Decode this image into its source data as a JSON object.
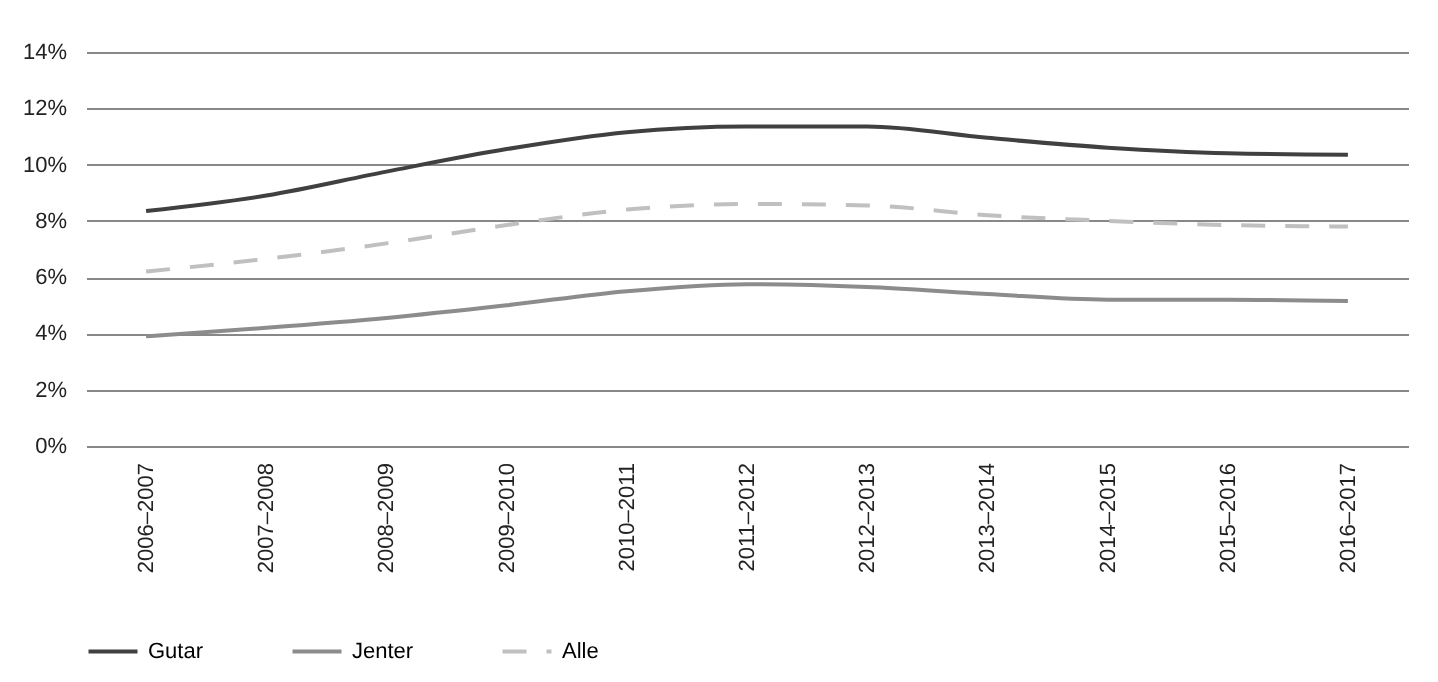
{
  "chart_data": {
    "type": "line",
    "categories": [
      "2006–2007",
      "2007–2008",
      "2008–2009",
      "2009–2010",
      "2010–2011",
      "2011–2012",
      "2012–2013",
      "2013–2014",
      "2014–2015",
      "2015–2016",
      "2016–2017"
    ],
    "series": [
      {
        "name": "Gutar",
        "color": "#404040",
        "line_style": "solid",
        "values": [
          8.35,
          8.9,
          9.75,
          10.55,
          11.15,
          11.35,
          11.35,
          10.95,
          10.6,
          10.4,
          10.35
        ]
      },
      {
        "name": "Jenter",
        "color": "#8c8c8c",
        "line_style": "solid",
        "values": [
          3.9,
          4.2,
          4.55,
          5.0,
          5.5,
          5.75,
          5.65,
          5.4,
          5.2,
          5.2,
          5.15
        ]
      },
      {
        "name": "Alle",
        "color": "#c0c0c0",
        "line_style": "dashed",
        "values": [
          6.2,
          6.65,
          7.2,
          7.85,
          8.4,
          8.6,
          8.55,
          8.2,
          8.0,
          7.85,
          7.8
        ]
      }
    ],
    "ylim": [
      0,
      14
    ],
    "yticks": [
      {
        "value": 0,
        "label": "0%"
      },
      {
        "value": 2,
        "label": "2%"
      },
      {
        "value": 4,
        "label": "4%"
      },
      {
        "value": 6,
        "label": "6%"
      },
      {
        "value": 8,
        "label": "8%"
      },
      {
        "value": 10,
        "label": "10%"
      },
      {
        "value": 12,
        "label": "12%"
      },
      {
        "value": 14,
        "label": "14%"
      }
    ],
    "grid": "y",
    "legend": "bottom",
    "marker": "none"
  }
}
